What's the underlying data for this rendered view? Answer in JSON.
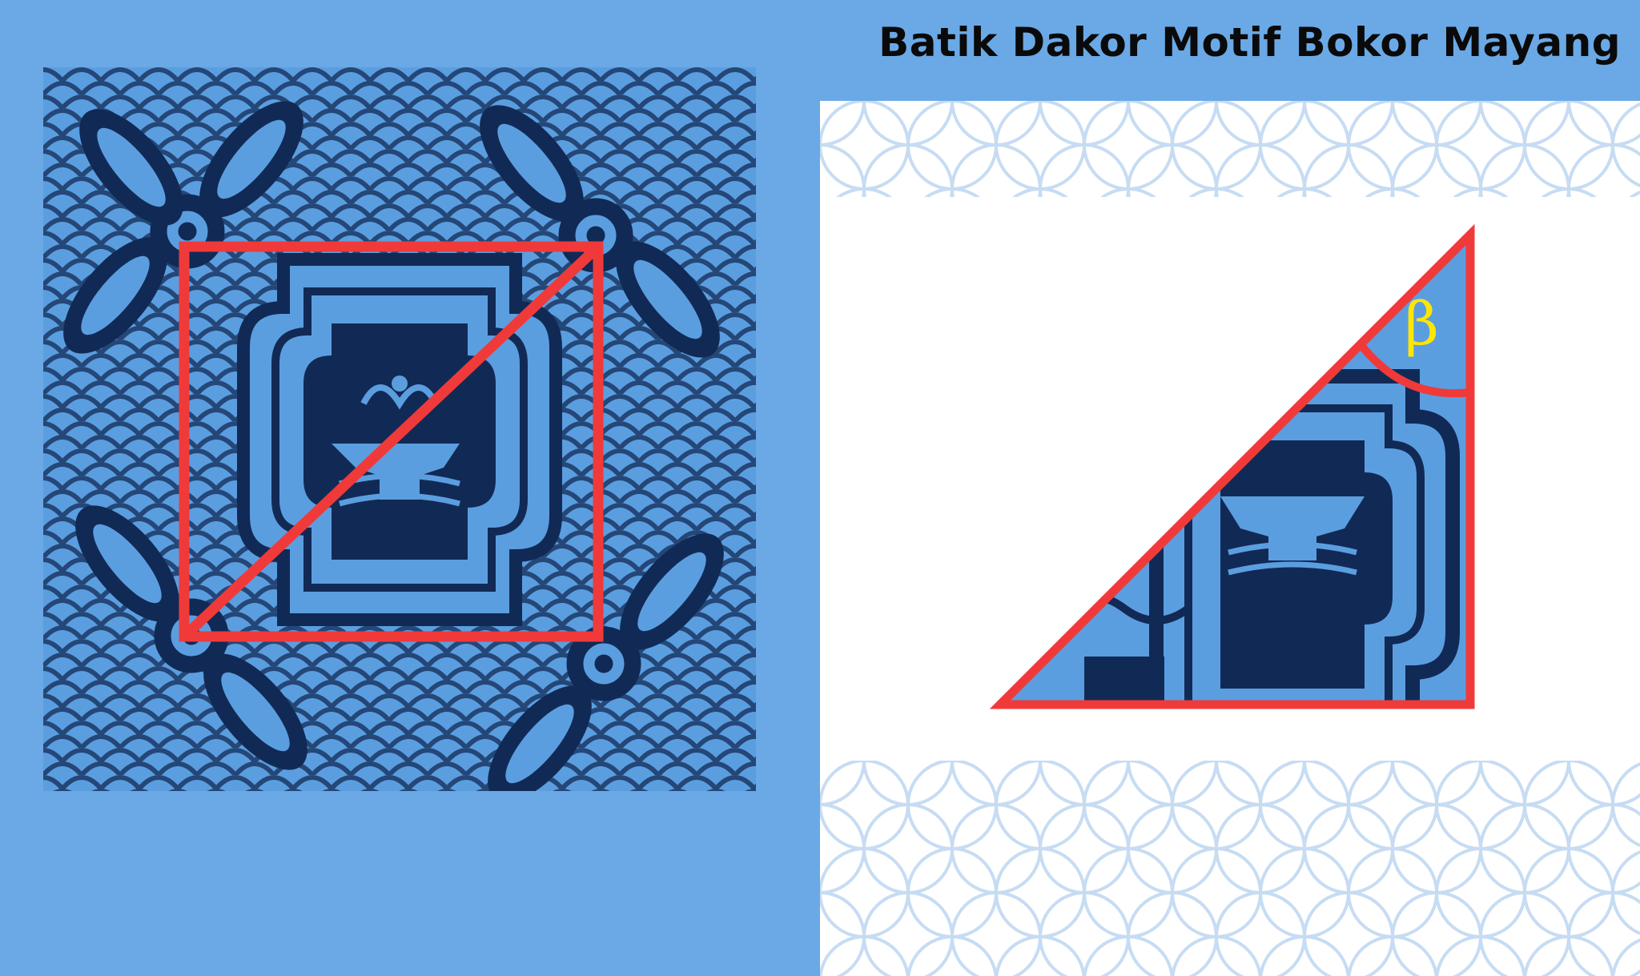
{
  "title": "Batik Dakor Motif Bokor Mayang",
  "angle_label": "β",
  "colors": {
    "panel_blue": "#6aa9e6",
    "fabric_blue": "#5b9ee0",
    "ink_navy": "#112a55",
    "outline_red": "#f03a3a",
    "angle_yellow": "#ffe600",
    "pattern_line": "#c6dcf3"
  },
  "motif": {
    "name": "bokor-mayang",
    "left_figure": "square-with-diagonal",
    "right_figure": "right-triangle-with-angle"
  }
}
